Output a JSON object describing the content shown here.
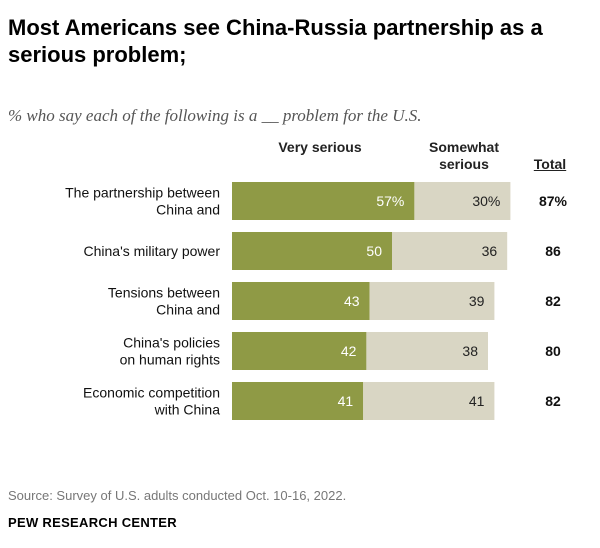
{
  "title": "Most Americans see China-Russia partnership as a serious problem;",
  "subtitle": "% who say each of the following is a __  problem for the U.S.",
  "columns": {
    "very_serious": "Very serious",
    "somewhat_serious": "Somewhat serious",
    "total": "Total"
  },
  "source": "Source: Survey of U.S. adults conducted Oct. 10-16, 2022.",
  "brand": "PEW RESEARCH CENTER",
  "colors": {
    "very": "#8f9a45",
    "somewhat": "#d9d6c4"
  },
  "chart_data": {
    "type": "bar",
    "orientation": "horizontal",
    "stacked": true,
    "categories": [
      [
        "The partnership between",
        "China and"
      ],
      [
        "China's military power"
      ],
      [
        "Tensions between",
        "China and"
      ],
      [
        "China's policies",
        "on human rights"
      ],
      [
        "Economic competition",
        "with China"
      ]
    ],
    "series": [
      {
        "name": "Very serious",
        "values": [
          57,
          50,
          43,
          42,
          41
        ],
        "labels": [
          "57%",
          "50",
          "43",
          "42",
          "41"
        ]
      },
      {
        "name": "Somewhat serious",
        "values": [
          30,
          36,
          39,
          38,
          41
        ],
        "labels": [
          "30%",
          "36",
          "39",
          "38",
          "41"
        ]
      }
    ],
    "totals": [
      "87%",
      "86",
      "82",
      "80",
      "82"
    ],
    "xlim": [
      0,
      100
    ]
  }
}
